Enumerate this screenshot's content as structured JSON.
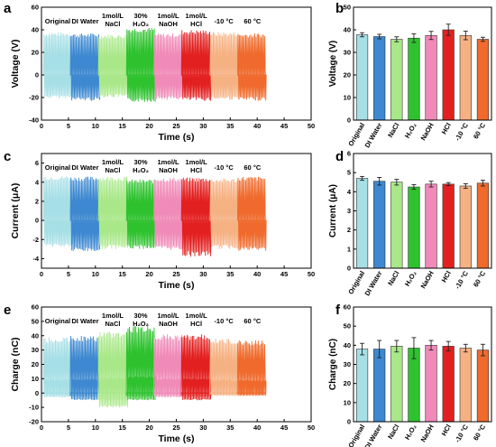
{
  "colors": {
    "Original": "#a6dfe6",
    "DI Water": "#3d88d0",
    "NaCl": "#a9e889",
    "H2O2": "#2fc22f",
    "NaOH": "#f08ab8",
    "HCl": "#e32020",
    "-10 °C": "#f6b183",
    "60 °C": "#ef6a2c"
  },
  "panel_letters": [
    "a",
    "b",
    "c",
    "d",
    "e",
    "f"
  ],
  "chart_data": [
    {
      "panel": "a",
      "type": "line",
      "xlabel": "Time (s)",
      "ylabel": "Voltage (V)",
      "xlim": [
        0,
        50
      ],
      "ylim": [
        -40,
        60
      ],
      "xticks": [
        0,
        5,
        10,
        15,
        20,
        25,
        30,
        35,
        40,
        45,
        50
      ],
      "yticks": [
        -40,
        -20,
        0,
        20,
        40,
        60
      ],
      "grid": false,
      "group_labels": [
        {
          "lines": [
            "Original"
          ],
          "x": 3.0
        },
        {
          "lines": [
            "DI Water"
          ],
          "x": 8.1
        },
        {
          "lines": [
            "1mol/L",
            "NaCl"
          ],
          "x": 13.2
        },
        {
          "lines": [
            "30%",
            "H₂O₂"
          ],
          "x": 18.4
        },
        {
          "lines": [
            "1mol/L",
            "NaOH"
          ],
          "x": 23.5
        },
        {
          "lines": [
            "1mol/L",
            "HCl"
          ],
          "x": 28.7
        },
        {
          "lines": [
            "-10 °C"
          ],
          "x": 33.8
        },
        {
          "lines": [
            "60 °C"
          ],
          "x": 39.1
        }
      ],
      "series": [
        {
          "name": "Original",
          "x_range": [
            0.4,
            5.7
          ],
          "peak_high": 38,
          "peak_low": -21
        },
        {
          "name": "DI Water",
          "x_range": [
            5.4,
            10.8
          ],
          "peak_high": 37,
          "peak_low": -23
        },
        {
          "name": "NaCl",
          "x_range": [
            10.6,
            16.0
          ],
          "peak_high": 36,
          "peak_low": -20
        },
        {
          "name": "H2O2",
          "x_range": [
            15.8,
            21.1
          ],
          "peak_high": 42,
          "peak_low": -24
        },
        {
          "name": "NaOH",
          "x_range": [
            20.9,
            26.2
          ],
          "peak_high": 37,
          "peak_low": -22
        },
        {
          "name": "HCl",
          "x_range": [
            26.0,
            31.4
          ],
          "peak_high": 40,
          "peak_low": -23
        },
        {
          "name": "-10 °C",
          "x_range": [
            31.3,
            36.6
          ],
          "peak_high": 38,
          "peak_low": -22
        },
        {
          "name": "60 °C",
          "x_range": [
            36.4,
            41.6
          ],
          "peak_high": 37,
          "peak_low": -23
        }
      ]
    },
    {
      "panel": "b",
      "type": "bar",
      "ylabel": "Voltage (V)",
      "ylim": [
        0,
        50
      ],
      "yticks": [
        0,
        10,
        20,
        30,
        40,
        50
      ],
      "categories": [
        "Original",
        "DI Water",
        "NaCl",
        "H₂O₂",
        "NaOH",
        "HCl",
        "-10 °C",
        "60 °C"
      ],
      "series": [
        {
          "values": [
            37.8,
            37.0,
            35.8,
            36.3,
            37.5,
            40.0,
            37.5,
            35.8
          ],
          "errors": [
            0.9,
            1.0,
            1.1,
            1.9,
            1.8,
            2.5,
            1.9,
            0.9
          ]
        }
      ]
    },
    {
      "panel": "c",
      "type": "line",
      "xlabel": "Time (s)",
      "ylabel": "Current (μA)",
      "xlim": [
        0,
        50
      ],
      "ylim": [
        -5,
        7
      ],
      "xticks": [
        0,
        5,
        10,
        15,
        20,
        25,
        30,
        35,
        40,
        45,
        50
      ],
      "yticks": [
        -4,
        -2,
        0,
        2,
        4,
        6
      ],
      "grid": false,
      "group_labels": [
        {
          "lines": [
            "Original"
          ],
          "x": 3.0
        },
        {
          "lines": [
            "DI Water"
          ],
          "x": 8.1
        },
        {
          "lines": [
            "1mol/L",
            "NaCl"
          ],
          "x": 13.2
        },
        {
          "lines": [
            "30%",
            "H₂O₂"
          ],
          "x": 18.4
        },
        {
          "lines": [
            "1mol/L",
            "NaOH"
          ],
          "x": 23.5
        },
        {
          "lines": [
            "1mol/L",
            "HCl"
          ],
          "x": 28.7
        },
        {
          "lines": [
            "-10 °C"
          ],
          "x": 33.8
        },
        {
          "lines": [
            "60 °C"
          ],
          "x": 39.1
        }
      ],
      "series": [
        {
          "name": "Original",
          "x_range": [
            0.4,
            5.7
          ],
          "peak_high": 4.7,
          "peak_low": -2.8
        },
        {
          "name": "DI Water",
          "x_range": [
            5.4,
            10.8
          ],
          "peak_high": 4.6,
          "peak_low": -3.3
        },
        {
          "name": "NaCl",
          "x_range": [
            10.6,
            16.0
          ],
          "peak_high": 4.6,
          "peak_low": -3.0
        },
        {
          "name": "H2O2",
          "x_range": [
            15.8,
            21.1
          ],
          "peak_high": 4.3,
          "peak_low": -3.0
        },
        {
          "name": "NaOH",
          "x_range": [
            20.9,
            26.2
          ],
          "peak_high": 4.5,
          "peak_low": -3.1
        },
        {
          "name": "HCl",
          "x_range": [
            26.0,
            31.4
          ],
          "peak_high": 4.5,
          "peak_low": -3.8
        },
        {
          "name": "-10 °C",
          "x_range": [
            31.3,
            36.6
          ],
          "peak_high": 4.4,
          "peak_low": -3.0
        },
        {
          "name": "60 °C",
          "x_range": [
            36.4,
            41.6
          ],
          "peak_high": 4.6,
          "peak_low": -3.2
        }
      ]
    },
    {
      "panel": "d",
      "type": "bar",
      "ylabel": "Current (μA)",
      "ylim": [
        0,
        6
      ],
      "yticks": [
        0,
        1,
        2,
        3,
        4,
        5,
        6
      ],
      "categories": [
        "Original",
        "DI Water",
        "NaCl",
        "H₂O₂",
        "NaOH",
        "HCl",
        "-10 °C",
        "60 °C"
      ],
      "series": [
        {
          "values": [
            4.7,
            4.55,
            4.5,
            4.25,
            4.4,
            4.4,
            4.3,
            4.45
          ],
          "errors": [
            0.1,
            0.2,
            0.15,
            0.12,
            0.15,
            0.08,
            0.12,
            0.15
          ]
        }
      ]
    },
    {
      "panel": "e",
      "type": "line",
      "xlabel": "Time (s)",
      "ylabel": "Charge (nC)",
      "xlim": [
        0,
        50
      ],
      "ylim": [
        -20,
        60
      ],
      "xticks": [
        0,
        5,
        10,
        15,
        20,
        25,
        30,
        35,
        40,
        45,
        50
      ],
      "yticks": [
        -20,
        -10,
        0,
        10,
        20,
        30,
        40,
        50,
        60
      ],
      "grid": false,
      "group_labels": [
        {
          "lines": [
            "Original"
          ],
          "x": 3.0
        },
        {
          "lines": [
            "DI Water"
          ],
          "x": 8.1
        },
        {
          "lines": [
            "1mol/L",
            "NaCl"
          ],
          "x": 13.2
        },
        {
          "lines": [
            "30%",
            "H₂O₂"
          ],
          "x": 18.4
        },
        {
          "lines": [
            "1mol/L",
            "NaOH"
          ],
          "x": 23.5
        },
        {
          "lines": [
            "1mol/L",
            "HCl"
          ],
          "x": 28.7
        },
        {
          "lines": [
            "-10 °C"
          ],
          "x": 33.8
        },
        {
          "lines": [
            "60 °C"
          ],
          "x": 39.1
        }
      ],
      "series": [
        {
          "name": "Original",
          "x_range": [
            0.4,
            5.7
          ],
          "peak_high": 39,
          "peak_low": -3
        },
        {
          "name": "DI Water",
          "x_range": [
            5.4,
            10.8
          ],
          "peak_high": 40,
          "peak_low": -5
        },
        {
          "name": "NaCl",
          "x_range": [
            10.6,
            16.0
          ],
          "peak_high": 43,
          "peak_low": -10
        },
        {
          "name": "H2O2",
          "x_range": [
            15.8,
            21.1
          ],
          "peak_high": 47,
          "peak_low": -5
        },
        {
          "name": "NaOH",
          "x_range": [
            20.9,
            26.2
          ],
          "peak_high": 41,
          "peak_low": -3
        },
        {
          "name": "HCl",
          "x_range": [
            26.0,
            31.4
          ],
          "peak_high": 41,
          "peak_low": -5
        },
        {
          "name": "-10 °C",
          "x_range": [
            31.3,
            36.6
          ],
          "peak_high": 38,
          "peak_low": -2
        },
        {
          "name": "60 °C",
          "x_range": [
            36.4,
            41.6
          ],
          "peak_high": 37,
          "peak_low": -2
        }
      ]
    },
    {
      "panel": "f",
      "type": "bar",
      "ylabel": "Charge (nC)",
      "ylim": [
        0,
        60
      ],
      "yticks": [
        0,
        10,
        20,
        30,
        40,
        50,
        60
      ],
      "categories": [
        "Original",
        "DI Water",
        "NaCl",
        "H₂O₂",
        "NaOH",
        "HCl",
        "-10 °C",
        "60 °C"
      ],
      "series": [
        {
          "values": [
            38.0,
            38.0,
            39.5,
            38.5,
            40.0,
            39.5,
            38.5,
            37.5
          ],
          "errors": [
            3.0,
            4.5,
            3.0,
            5.5,
            2.5,
            2.5,
            2.0,
            3.0
          ]
        }
      ]
    }
  ]
}
